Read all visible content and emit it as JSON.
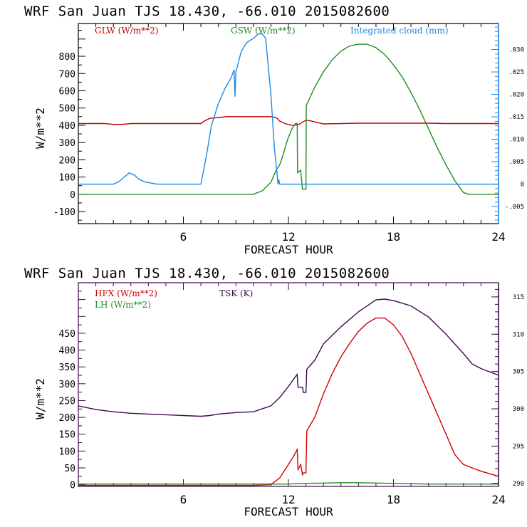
{
  "colors": {
    "glw": "#c00000",
    "gsw": "#228b22",
    "cloud": "#1e88e5",
    "hfx": "#d00000",
    "lh": "#228b22",
    "tsk": "#3c0a4a",
    "axis_top": "#000000",
    "axis_bottom": "#3c0a4a"
  },
  "chart_data": [
    {
      "type": "line",
      "title": "WRF  San Juan TJS  18.430, -66.010  2015082600",
      "xlabel": "FORECAST HOUR",
      "ylabel": "W/m**2",
      "xlim": [
        0,
        24
      ],
      "ylim": [
        -170,
        990
      ],
      "x_ticks": [
        "6",
        "12",
        "18",
        "24"
      ],
      "y_ticks": [
        "-100",
        "0",
        "100",
        "200",
        "300",
        "400",
        "500",
        "600",
        "700",
        "800"
      ],
      "y2lim": [
        -0.0088,
        0.0358
      ],
      "y2_ticks": [
        "-.005",
        "0",
        ".005",
        ".010",
        ".015",
        ".020",
        ".025",
        ".030"
      ],
      "legend": [
        {
          "name": "GLW (W/m**2)",
          "color_key": "glw"
        },
        {
          "name": "GSW (W/m**2)",
          "color_key": "gsw"
        },
        {
          "name": "Integrated cloud (mm)",
          "color_key": "cloud"
        }
      ],
      "legend_position": "top",
      "series": [
        {
          "name": "GLW",
          "axis": "left",
          "color_key": "glw",
          "x": [
            0,
            0.5,
            1,
            1.5,
            2,
            2.5,
            3,
            3.5,
            4,
            5,
            6,
            7,
            7.2,
            7.5,
            8,
            8.5,
            9,
            10,
            11,
            11.3,
            11.5,
            11.8,
            12.2,
            12.3,
            12.6,
            13,
            13.3,
            14,
            15,
            16,
            17,
            18,
            19,
            20,
            21,
            22,
            23,
            24
          ],
          "y": [
            410,
            410,
            410,
            410,
            405,
            405,
            410,
            410,
            410,
            410,
            410,
            410,
            425,
            440,
            445,
            450,
            450,
            450,
            450,
            445,
            425,
            410,
            400,
            400,
            405,
            430,
            425,
            408,
            410,
            412,
            412,
            412,
            412,
            412,
            410,
            410,
            410,
            410
          ]
        },
        {
          "name": "GSW",
          "axis": "left",
          "color_key": "gsw",
          "x": [
            0,
            5,
            10,
            10.5,
            11,
            11.3,
            11.5,
            11.7,
            11.9,
            12,
            12.2,
            12.4,
            12.5,
            12.52,
            12.7,
            12.8,
            12.82,
            13,
            13.02,
            13.5,
            14,
            14.5,
            15,
            15.5,
            16,
            16.5,
            17,
            17.5,
            18,
            18.5,
            19,
            19.5,
            20,
            20.5,
            21,
            21.5,
            22,
            22.3,
            24
          ],
          "y": [
            0,
            0,
            0,
            20,
            70,
            140,
            170,
            230,
            300,
            330,
            380,
            410,
            410,
            125,
            140,
            30,
            30,
            30,
            515,
            620,
            710,
            780,
            830,
            860,
            870,
            870,
            850,
            810,
            750,
            680,
            590,
            490,
            380,
            270,
            170,
            80,
            10,
            0,
            0
          ]
        },
        {
          "name": "Integrated cloud",
          "axis": "right",
          "color_key": "cloud",
          "x": [
            0,
            2,
            2.3,
            2.6,
            2.9,
            3.2,
            3.5,
            3.8,
            4.2,
            4.5,
            5,
            6.5,
            7,
            7.3,
            7.6,
            8,
            8.4,
            8.7,
            8.9,
            8.95,
            9.0,
            9.3,
            9.6,
            10,
            10.3,
            10.5,
            10.7,
            11.0,
            11.2,
            11.35,
            11.4,
            11.45,
            11.5,
            12,
            24
          ],
          "y": [
            0,
            0,
            0.0005,
            0.0015,
            0.0025,
            0.002,
            0.001,
            0.0005,
            0.0002,
            0,
            0,
            0,
            0,
            0.006,
            0.013,
            0.018,
            0.0215,
            0.0235,
            0.0255,
            0.0195,
            0.025,
            0.0295,
            0.0315,
            0.0325,
            0.0335,
            0.0335,
            0.0325,
            0.02,
            0.008,
            0.0025,
            0,
            0.001,
            0,
            0,
            0
          ]
        }
      ]
    },
    {
      "type": "line",
      "title": "WRF  San Juan TJS  18.430, -66.010  2015082600",
      "xlabel": "FORECAST HOUR",
      "ylabel": "W/m**2",
      "xlim": [
        0,
        24
      ],
      "ylim": [
        -5,
        600
      ],
      "x_ticks": [
        "6",
        "12",
        "18",
        "24"
      ],
      "y_ticks": [
        "0",
        "50",
        "100",
        "150",
        "200",
        "250",
        "300",
        "350",
        "400",
        "450"
      ],
      "y2lim": [
        289.6,
        316.9
      ],
      "y2_ticks": [
        "290",
        "295",
        "300",
        "305",
        "310",
        "315"
      ],
      "legend": [
        {
          "name": "HFX (W/m**2)",
          "color_key": "hfx"
        },
        {
          "name": "LH  (W/m**2)",
          "color_key": "lh"
        },
        {
          "name": "TSK (K)",
          "color_key": "tsk"
        }
      ],
      "legend_position": "top-left",
      "series": [
        {
          "name": "HFX",
          "axis": "left",
          "color_key": "hfx",
          "x": [
            0,
            4,
            6,
            8,
            10,
            11,
            11.5,
            12,
            12.3,
            12.5,
            12.55,
            12.7,
            12.8,
            12.85,
            13,
            13.05,
            13.5,
            14,
            14.5,
            15,
            15.5,
            16,
            16.5,
            17,
            17.5,
            18,
            18.5,
            19,
            19.5,
            20,
            20.5,
            21,
            21.5,
            22,
            22.5,
            23,
            24
          ],
          "y": [
            -2,
            -2,
            -2,
            -2,
            -2,
            0,
            20,
            60,
            85,
            105,
            45,
            60,
            30,
            35,
            35,
            160,
            200,
            270,
            330,
            380,
            420,
            455,
            480,
            495,
            495,
            475,
            440,
            390,
            330,
            270,
            210,
            150,
            90,
            60,
            50,
            40,
            25
          ]
        },
        {
          "name": "LH",
          "axis": "left",
          "color_key": "lh",
          "x": [
            0,
            12,
            13,
            14,
            15,
            16,
            17,
            18,
            19,
            20,
            24
          ],
          "y": [
            2,
            2,
            4,
            5,
            6,
            6,
            5,
            4,
            3,
            2,
            2
          ]
        },
        {
          "name": "TSK",
          "axis": "right",
          "color_key": "tsk",
          "x": [
            0,
            1,
            2,
            3,
            4,
            5,
            6,
            7,
            7.5,
            8,
            9,
            10,
            11,
            11.5,
            12,
            12.3,
            12.5,
            12.55,
            12.8,
            12.85,
            13,
            13.05,
            13.5,
            14,
            15,
            16,
            17,
            17.5,
            18,
            19,
            20,
            21,
            22,
            22.5,
            23,
            24
          ],
          "y": [
            300.4,
            299.9,
            299.6,
            299.4,
            299.3,
            299.2,
            299.1,
            299.0,
            299.1,
            299.3,
            299.5,
            299.6,
            300.4,
            301.5,
            303.0,
            304.0,
            304.6,
            302.9,
            302.9,
            302.2,
            302.2,
            305.3,
            306.5,
            308.7,
            311.0,
            313.0,
            314.6,
            314.7,
            314.5,
            313.8,
            312.3,
            310.0,
            307.4,
            306.0,
            305.4,
            304.5
          ]
        }
      ]
    }
  ]
}
